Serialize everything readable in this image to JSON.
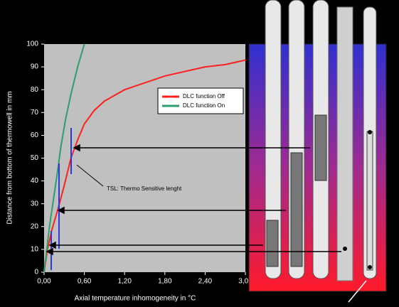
{
  "chart_data": {
    "type": "line",
    "x_label": "Axial temperature inhomogeneity in °C",
    "y_label": "Distance from bottom of thermowell in mm",
    "annotation": "TSL: Thermo Sensitive lenght",
    "xlim": [
      0,
      3.0
    ],
    "ylim": [
      0,
      100
    ],
    "xticks": [
      {
        "value": 0,
        "label": "0,00"
      },
      {
        "value": 0.6,
        "label": "0,60"
      },
      {
        "value": 1.2,
        "label": "1,20"
      },
      {
        "value": 1.8,
        "label": "1,80"
      },
      {
        "value": 2.4,
        "label": "2,40"
      },
      {
        "value": 3.0,
        "label": "3,00"
      }
    ],
    "yticks": [
      0,
      10,
      20,
      30,
      40,
      50,
      60,
      70,
      80,
      90,
      100
    ],
    "series": [
      {
        "name": "DLC function Off",
        "color": "#ff2020",
        "x": [
          0,
          0.05,
          0.12,
          0.2,
          0.3,
          0.4,
          0.5,
          0.6,
          0.75,
          0.9,
          1.2,
          1.5,
          1.8,
          2.1,
          2.4,
          2.7,
          3.0
        ],
        "values": [
          0,
          10,
          19,
          27,
          38,
          50,
          58,
          65,
          71,
          75,
          80,
          83,
          86,
          88,
          90,
          91,
          93
        ]
      },
      {
        "name": "DLC function On",
        "color": "#2e9e6a",
        "x": [
          0,
          0.04,
          0.08,
          0.13,
          0.19,
          0.25,
          0.32,
          0.4,
          0.5,
          0.6
        ],
        "values": [
          0,
          10,
          20,
          30,
          42,
          55,
          67,
          78,
          90,
          100
        ]
      }
    ]
  }
}
